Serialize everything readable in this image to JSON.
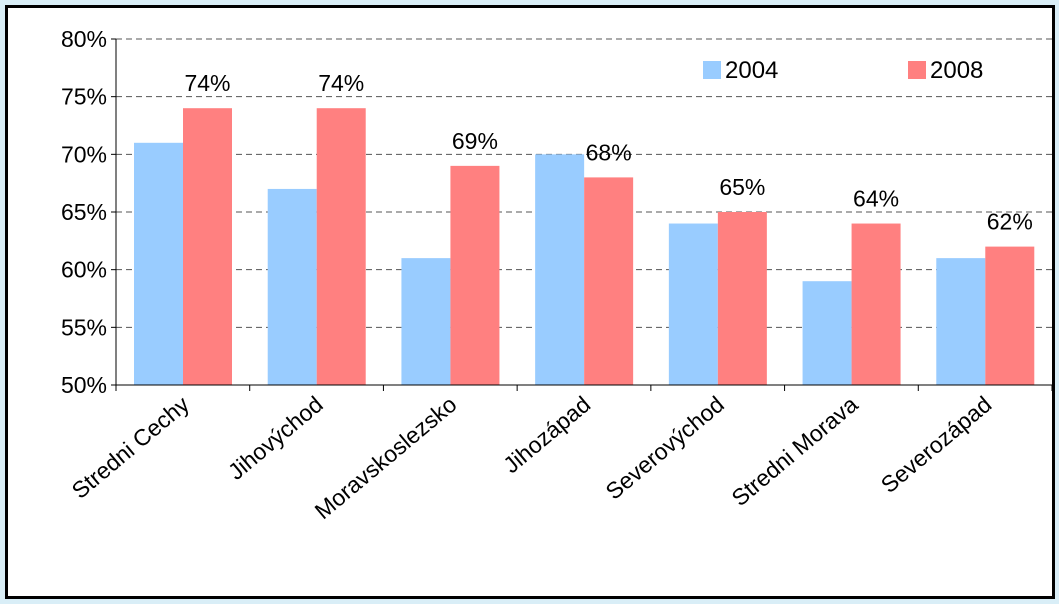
{
  "chart_data": {
    "type": "bar",
    "title": "",
    "xlabel": "",
    "ylabel": "",
    "categories": [
      "Stredni Cechy",
      "Jihovýchod",
      "Moravskoslezsko",
      "Jihozápad",
      "Severovýchod",
      "Stredni Morava",
      "Severozápad"
    ],
    "series": [
      {
        "name": "2004",
        "color": "#99ccff",
        "values": [
          71,
          67,
          61,
          70,
          64,
          59,
          61
        ],
        "labels": [
          "",
          "",
          "",
          "",
          "",
          "",
          ""
        ]
      },
      {
        "name": "2008",
        "color": "#ff8080",
        "values": [
          74,
          74,
          69,
          68,
          65,
          64,
          62
        ],
        "labels": [
          "74%",
          "74%",
          "69%",
          "68%",
          "65%",
          "64%",
          "62%"
        ]
      }
    ],
    "ylim": [
      50,
      80
    ],
    "yticks": [
      50,
      55,
      60,
      65,
      70,
      75,
      80
    ],
    "ytick_labels": [
      "50%",
      "55%",
      "60%",
      "65%",
      "70%",
      "75%",
      "80%"
    ],
    "grid": true,
    "legend_position": "top-right"
  }
}
